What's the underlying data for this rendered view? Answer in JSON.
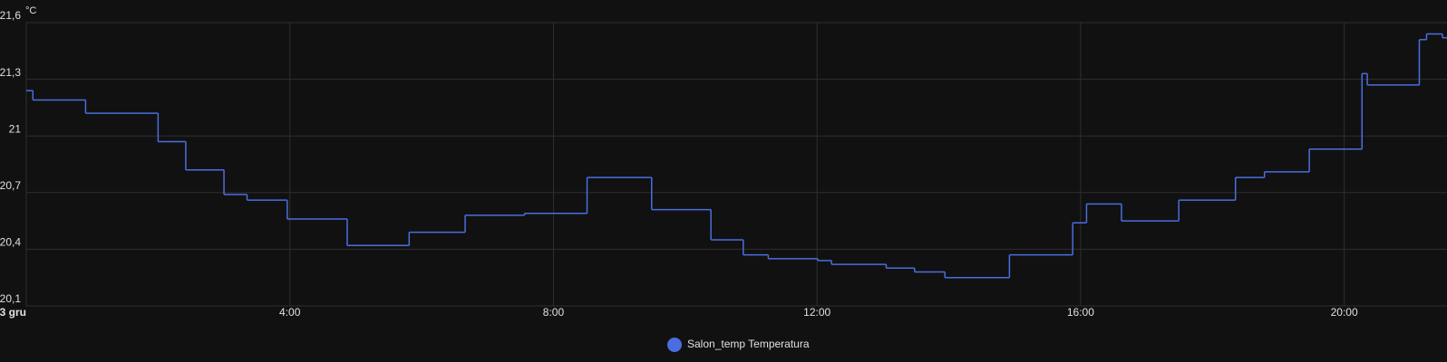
{
  "chart_data": {
    "type": "step-line",
    "y_unit": "°C",
    "x": [
      0,
      0.1,
      0.9,
      2.0,
      2.42,
      3.0,
      3.35,
      3.96,
      4.87,
      5.81,
      6.66,
      7.56,
      8.51,
      9.49,
      10.39,
      10.88,
      11.26,
      12.01,
      12.22,
      13.05,
      13.48,
      13.94,
      14.92,
      15.88,
      16.09,
      16.62,
      17.49,
      18.35,
      18.79,
      19.47,
      20.27,
      20.35,
      21.14,
      21.25,
      21.49
    ],
    "series": [
      {
        "name": "Salon_temp Temperatura",
        "color": "#4a6ee0",
        "values": [
          21.24,
          21.19,
          21.12,
          20.97,
          20.82,
          20.69,
          20.66,
          20.56,
          20.42,
          20.49,
          20.58,
          20.59,
          20.78,
          20.61,
          20.45,
          20.37,
          20.35,
          20.34,
          20.32,
          20.3,
          20.28,
          20.25,
          20.37,
          20.54,
          20.64,
          20.55,
          20.66,
          20.78,
          20.81,
          20.93,
          21.33,
          21.27,
          21.51,
          21.54,
          21.52
        ]
      }
    ],
    "xlim": [
      0,
      21.56
    ],
    "xticks": [
      {
        "value": 0,
        "label": "3 gru"
      },
      {
        "value": 4,
        "label": "4:00"
      },
      {
        "value": 8,
        "label": "8:00"
      },
      {
        "value": 12,
        "label": "12:00"
      },
      {
        "value": 16,
        "label": "16:00"
      },
      {
        "value": 20,
        "label": "20:00"
      }
    ],
    "ylim": [
      20.1,
      21.6
    ],
    "yticks": [
      {
        "value": 20.1,
        "label": "20,1"
      },
      {
        "value": 20.4,
        "label": "20,4"
      },
      {
        "value": 20.7,
        "label": "20,7"
      },
      21,
      {
        "value": 21.3,
        "label": "21,3"
      },
      {
        "value": 21.6,
        "label": "21,6"
      }
    ],
    "grid": true
  }
}
